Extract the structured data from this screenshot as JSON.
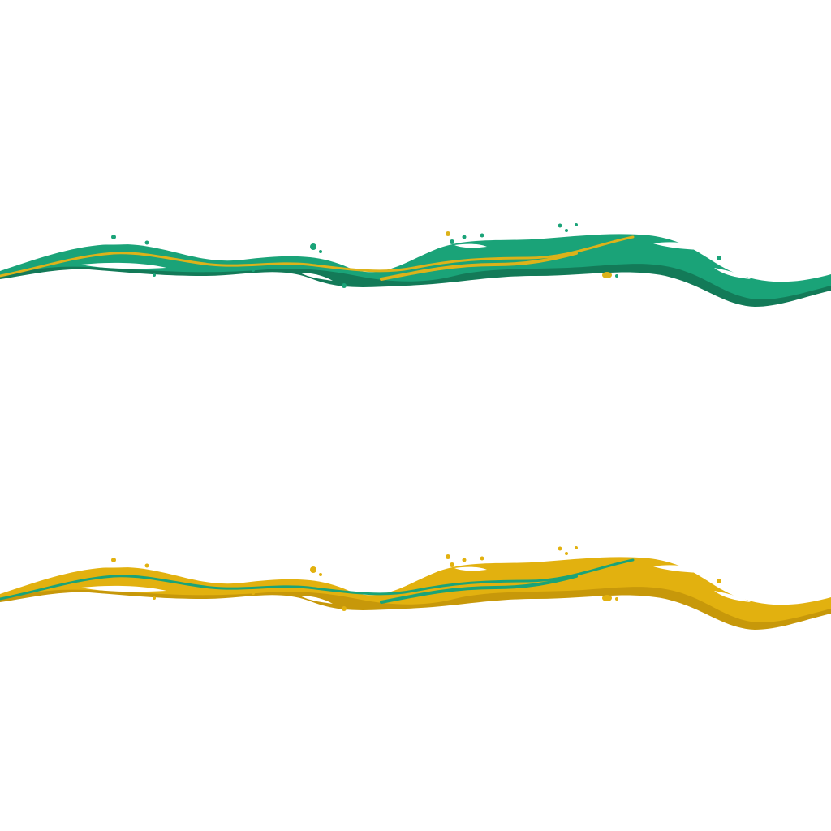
{
  "background": "#ffffff",
  "waves": [
    {
      "name": "green-paint-wave",
      "primary_color": "#1aa378",
      "shadow_color": "#137a58",
      "accent_color": "#dcb21a",
      "highlight_color": "#ffffff"
    },
    {
      "name": "yellow-paint-wave",
      "primary_color": "#e2b10f",
      "shadow_color": "#c7980a",
      "accent_color": "#1aa378",
      "highlight_color": "#ffffff"
    }
  ]
}
